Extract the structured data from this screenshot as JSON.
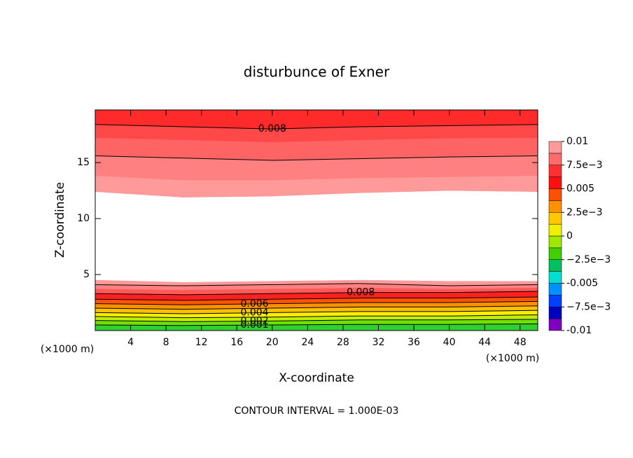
{
  "chart_data": {
    "type": "contour",
    "title": "disturbunce of Exner",
    "xlabel": "X-coordinate",
    "ylabel": "Z-coordinate",
    "x_unit": "(×1000 m)",
    "y_unit": "(×1000 m)",
    "footer": "CONTOUR INTERVAL = 1.000E-03",
    "xlim": [
      0,
      50
    ],
    "ylim": [
      0,
      19.7
    ],
    "xticks": [
      4,
      8,
      12,
      16,
      20,
      24,
      28,
      32,
      36,
      40,
      44,
      48
    ],
    "yticks": [
      5,
      10,
      15
    ],
    "x": [
      0,
      10,
      20,
      30,
      40,
      50
    ],
    "bands": [
      {
        "color": "#ff2a2a",
        "top": [
          19.7,
          19.7,
          19.7,
          19.7,
          19.7,
          19.7
        ],
        "bottom": [
          18.4,
          18.2,
          18.0,
          18.2,
          18.3,
          18.4
        ]
      },
      {
        "color": "#ff4848",
        "top": [
          18.4,
          18.2,
          18.0,
          18.2,
          18.3,
          18.4
        ],
        "bottom": [
          17.2,
          17.0,
          16.8,
          17.0,
          17.15,
          17.2
        ]
      },
      {
        "color": "#ff6464",
        "top": [
          17.2,
          17.0,
          16.8,
          17.0,
          17.15,
          17.2
        ],
        "bottom": [
          15.6,
          15.4,
          15.2,
          15.35,
          15.5,
          15.6
        ]
      },
      {
        "color": "#ff8080",
        "top": [
          15.6,
          15.4,
          15.2,
          15.35,
          15.5,
          15.6
        ],
        "bottom": [
          13.8,
          13.4,
          13.4,
          13.6,
          13.7,
          13.8
        ]
      },
      {
        "color": "#ff9a9a",
        "top": [
          13.8,
          13.4,
          13.4,
          13.6,
          13.7,
          13.8
        ],
        "bottom": [
          12.4,
          11.9,
          12.0,
          12.3,
          12.5,
          12.4
        ]
      },
      {
        "color": "#ff9a9a",
        "top": [
          4.5,
          4.3,
          4.4,
          4.5,
          4.4,
          4.4
        ],
        "bottom": [
          4.1,
          4.0,
          4.1,
          4.2,
          4.0,
          4.1
        ]
      },
      {
        "color": "#ff8080",
        "top": [
          4.1,
          4.0,
          4.1,
          4.2,
          4.0,
          4.1
        ],
        "bottom": [
          3.7,
          3.6,
          3.7,
          3.8,
          3.7,
          3.8
        ]
      },
      {
        "color": "#ff5a5a",
        "top": [
          3.7,
          3.6,
          3.7,
          3.8,
          3.7,
          3.8
        ],
        "bottom": [
          3.3,
          3.2,
          3.3,
          3.4,
          3.4,
          3.5
        ]
      },
      {
        "color": "#ff2020",
        "top": [
          3.3,
          3.2,
          3.3,
          3.4,
          3.4,
          3.5
        ],
        "bottom": [
          2.8,
          2.7,
          2.8,
          2.9,
          2.9,
          3.0
        ]
      },
      {
        "color": "#ff5500",
        "top": [
          2.8,
          2.7,
          2.8,
          2.9,
          2.9,
          3.0
        ],
        "bottom": [
          2.4,
          2.3,
          2.4,
          2.5,
          2.5,
          2.6
        ]
      },
      {
        "color": "#ff9000",
        "top": [
          2.4,
          2.3,
          2.4,
          2.5,
          2.5,
          2.6
        ],
        "bottom": [
          2.0,
          1.9,
          2.0,
          2.1,
          2.1,
          2.2
        ]
      },
      {
        "color": "#ffc000",
        "top": [
          2.0,
          1.9,
          2.0,
          2.1,
          2.1,
          2.2
        ],
        "bottom": [
          1.6,
          1.5,
          1.6,
          1.7,
          1.7,
          1.8
        ]
      },
      {
        "color": "#ffee00",
        "top": [
          1.6,
          1.5,
          1.6,
          1.7,
          1.7,
          1.8
        ],
        "bottom": [
          1.25,
          1.15,
          1.2,
          1.3,
          1.3,
          1.4
        ]
      },
      {
        "color": "#c0f000",
        "top": [
          1.25,
          1.15,
          1.2,
          1.3,
          1.3,
          1.4
        ],
        "bottom": [
          0.9,
          0.8,
          0.85,
          0.95,
          0.95,
          1.0
        ]
      },
      {
        "color": "#70e000",
        "top": [
          0.9,
          0.8,
          0.85,
          0.95,
          0.95,
          1.0
        ],
        "bottom": [
          0.5,
          0.45,
          0.5,
          0.55,
          0.55,
          0.6
        ]
      },
      {
        "color": "#30d030",
        "top": [
          0.5,
          0.45,
          0.5,
          0.55,
          0.55,
          0.6
        ],
        "bottom": [
          0,
          0,
          0,
          0,
          0,
          0
        ]
      }
    ],
    "contours": [
      {
        "z": [
          18.4,
          18.2,
          18.0,
          18.2,
          18.3,
          18.4
        ],
        "level": 0.008,
        "label_x": 20
      },
      {
        "z": [
          15.6,
          15.4,
          15.2,
          15.35,
          15.5,
          15.6
        ]
      },
      {
        "z": [
          4.1,
          4.0,
          4.1,
          4.2,
          4.0,
          4.1
        ]
      },
      {
        "z": [
          3.3,
          3.2,
          3.3,
          3.4,
          3.4,
          3.5
        ],
        "level": 0.008,
        "label_x": 30
      },
      {
        "z": [
          2.8,
          2.7,
          2.8,
          2.9,
          2.9,
          3.0
        ]
      },
      {
        "z": [
          2.4,
          2.3,
          2.4,
          2.5,
          2.5,
          2.6
        ],
        "level": 0.006,
        "label_x": 18
      },
      {
        "z": [
          2.0,
          1.9,
          2.0,
          2.1,
          2.1,
          2.2
        ]
      },
      {
        "z": [
          1.6,
          1.5,
          1.6,
          1.7,
          1.7,
          1.8
        ],
        "level": 0.004,
        "label_x": 18
      },
      {
        "z": [
          1.25,
          1.15,
          1.2,
          1.3,
          1.3,
          1.4
        ]
      },
      {
        "z": [
          0.9,
          0.8,
          0.85,
          0.95,
          0.95,
          1.0
        ],
        "level": 0.002,
        "label_x": 18
      },
      {
        "z": [
          0.5,
          0.45,
          0.5,
          0.55,
          0.55,
          0.6
        ],
        "level": 0.001,
        "label_x": 18
      }
    ],
    "colorbar": {
      "lim": [
        -0.01,
        0.01
      ],
      "colors": [
        "#8000c0",
        "#0000c0",
        "#0040ff",
        "#0090ff",
        "#00e0d0",
        "#00c060",
        "#40d000",
        "#a0e800",
        "#f0f000",
        "#ffc800",
        "#ff9000",
        "#ff5000",
        "#ff1010",
        "#ff3030",
        "#ff6a6a",
        "#ff9a9a"
      ],
      "ticks": [
        -0.01,
        {
          "value": -0.0075,
          "label": "−7.5e−3"
        },
        -0.005,
        {
          "value": -0.0025,
          "label": "−2.5e−3"
        },
        0,
        {
          "value": 0.0025,
          "label": "2.5e−3"
        },
        0.005,
        {
          "value": 0.0075,
          "label": "7.5e−3"
        },
        0.01
      ]
    }
  }
}
